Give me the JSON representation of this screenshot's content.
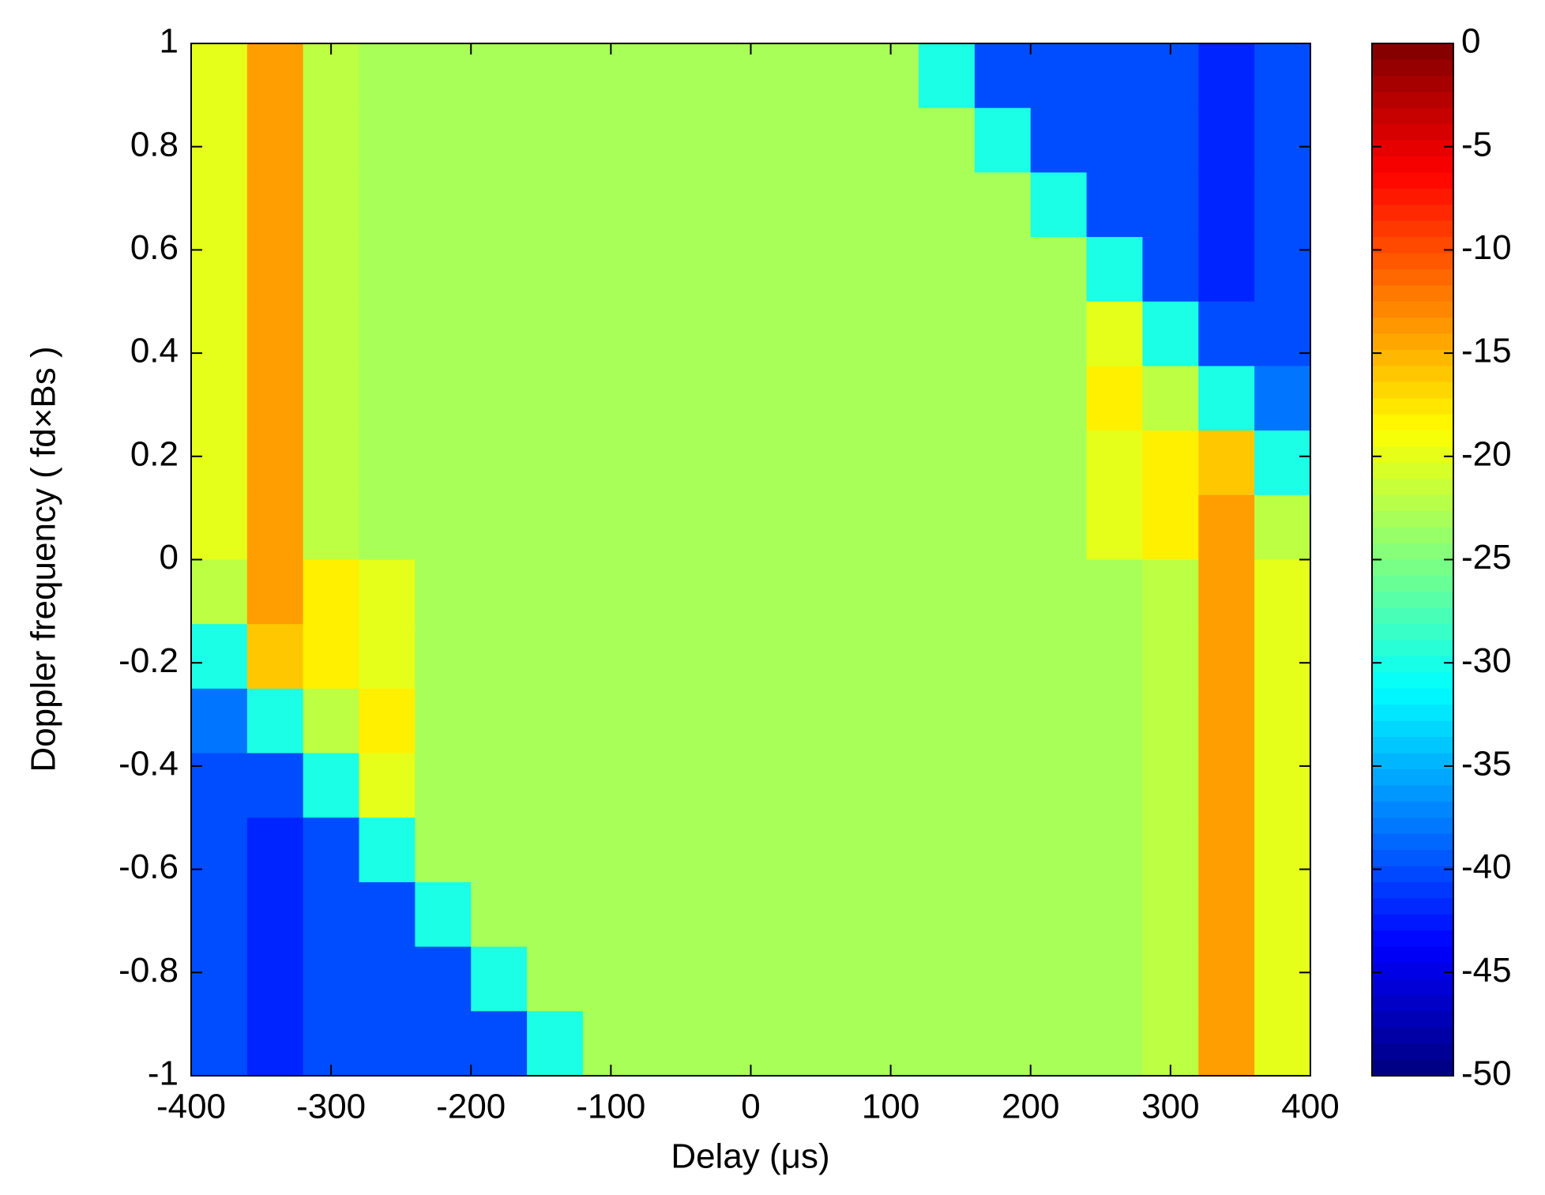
{
  "chart_data": {
    "type": "heatmap",
    "xlabel": "Delay (μs)",
    "ylabel": "Doppler frequency ( fd×Bs )",
    "x": [
      -380,
      -340,
      -300,
      -260,
      -220,
      -180,
      -140,
      -100,
      -60,
      -20,
      20,
      60,
      100,
      140,
      180,
      220,
      260,
      300,
      340,
      380
    ],
    "y": [
      0.9375,
      0.8125,
      0.6875,
      0.5625,
      0.4375,
      0.3125,
      0.1875,
      0.0625,
      -0.0625,
      -0.1875,
      -0.3125,
      -0.4375,
      -0.5625,
      -0.6875,
      -0.8125,
      -0.9375
    ],
    "z": [
      [
        -20,
        -14,
        -22,
        -23,
        -23,
        -23,
        -23,
        -23,
        -23,
        -23,
        -23,
        -23,
        -23,
        -30,
        -40,
        -40,
        -40,
        -40,
        -42,
        -40
      ],
      [
        -20,
        -14,
        -22,
        -23,
        -23,
        -23,
        -23,
        -23,
        -23,
        -23,
        -23,
        -23,
        -23,
        -23,
        -30,
        -40,
        -40,
        -40,
        -42,
        -40
      ],
      [
        -20,
        -14,
        -22,
        -23,
        -23,
        -23,
        -23,
        -23,
        -23,
        -23,
        -23,
        -23,
        -23,
        -23,
        -23,
        -30,
        -40,
        -40,
        -42,
        -40
      ],
      [
        -20,
        -14,
        -22,
        -23,
        -23,
        -23,
        -23,
        -23,
        -23,
        -23,
        -23,
        -23,
        -23,
        -23,
        -23,
        -23,
        -30,
        -40,
        -42,
        -40
      ],
      [
        -20,
        -14,
        -22,
        -23,
        -23,
        -23,
        -23,
        -23,
        -23,
        -23,
        -23,
        -23,
        -23,
        -23,
        -23,
        -23,
        -20,
        -30,
        -40,
        -40
      ],
      [
        -20,
        -14,
        -22,
        -23,
        -23,
        -23,
        -23,
        -23,
        -23,
        -23,
        -23,
        -23,
        -23,
        -23,
        -23,
        -23,
        -18,
        -22,
        -30,
        -38
      ],
      [
        -20,
        -14,
        -22,
        -23,
        -23,
        -23,
        -23,
        -23,
        -23,
        -23,
        -23,
        -23,
        -23,
        -23,
        -23,
        -23,
        -20,
        -18,
        -16,
        -30
      ],
      [
        -20,
        -14,
        -22,
        -23,
        -23,
        -23,
        -23,
        -23,
        -23,
        -23,
        -23,
        -23,
        -23,
        -23,
        -23,
        -23,
        -20,
        -18,
        -14,
        -22
      ],
      [
        -22,
        -14,
        -18,
        -20,
        -23,
        -23,
        -23,
        -23,
        -23,
        -23,
        -23,
        -23,
        -23,
        -23,
        -23,
        -23,
        -23,
        -22,
        -14,
        -20
      ],
      [
        -30,
        -16,
        -18,
        -20,
        -23,
        -23,
        -23,
        -23,
        -23,
        -23,
        -23,
        -23,
        -23,
        -23,
        -23,
        -23,
        -23,
        -22,
        -14,
        -20
      ],
      [
        -38,
        -30,
        -22,
        -18,
        -23,
        -23,
        -23,
        -23,
        -23,
        -23,
        -23,
        -23,
        -23,
        -23,
        -23,
        -23,
        -23,
        -22,
        -14,
        -20
      ],
      [
        -40,
        -40,
        -30,
        -20,
        -23,
        -23,
        -23,
        -23,
        -23,
        -23,
        -23,
        -23,
        -23,
        -23,
        -23,
        -23,
        -23,
        -22,
        -14,
        -20
      ],
      [
        -40,
        -42,
        -40,
        -30,
        -23,
        -23,
        -23,
        -23,
        -23,
        -23,
        -23,
        -23,
        -23,
        -23,
        -23,
        -23,
        -23,
        -22,
        -14,
        -20
      ],
      [
        -40,
        -42,
        -40,
        -40,
        -30,
        -23,
        -23,
        -23,
        -23,
        -23,
        -23,
        -23,
        -23,
        -23,
        -23,
        -23,
        -23,
        -22,
        -14,
        -20
      ],
      [
        -40,
        -42,
        -40,
        -40,
        -40,
        -30,
        -23,
        -23,
        -23,
        -23,
        -23,
        -23,
        -23,
        -23,
        -23,
        -23,
        -23,
        -22,
        -14,
        -20
      ],
      [
        -40,
        -42,
        -40,
        -40,
        -40,
        -40,
        -30,
        -23,
        -23,
        -23,
        -23,
        -23,
        -23,
        -23,
        -23,
        -23,
        -23,
        -22,
        -14,
        -20
      ]
    ],
    "xlim": [
      -400,
      400
    ],
    "xticks": [
      -400,
      -300,
      -200,
      -100,
      0,
      100,
      200,
      300,
      400
    ],
    "ylim": [
      -1,
      1
    ],
    "yticks": [
      -1,
      -0.8,
      -0.6,
      -0.4,
      -0.2,
      0,
      0.2,
      0.4,
      0.6,
      0.8,
      1
    ],
    "colormap": "jet",
    "clim": [
      -50,
      0
    ],
    "cticks": [
      0,
      -5,
      -10,
      -15,
      -20,
      -25,
      -30,
      -35,
      -40,
      -45,
      -50
    ]
  }
}
